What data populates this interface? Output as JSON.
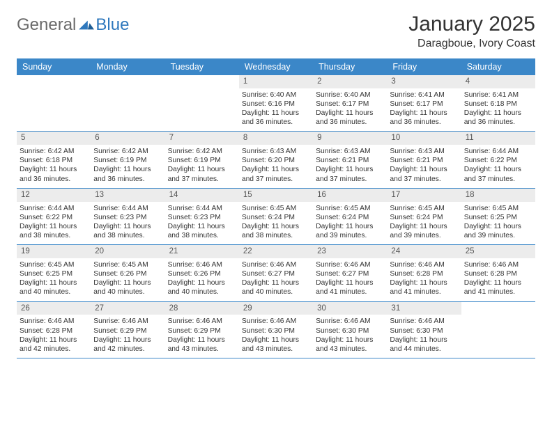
{
  "logo": {
    "general": "General",
    "blue": "Blue"
  },
  "title": "January 2025",
  "location": "Daragboue, Ivory Coast",
  "colors": {
    "header_bg": "#3b87c8",
    "header_text": "#ffffff",
    "daynum_bg": "#ececec",
    "text": "#333333",
    "logo_gray": "#6a6a6a",
    "logo_blue": "#2f78bd",
    "rule": "#3b87c8"
  },
  "day_names": [
    "Sunday",
    "Monday",
    "Tuesday",
    "Wednesday",
    "Thursday",
    "Friday",
    "Saturday"
  ],
  "weeks": [
    [
      {
        "empty": true
      },
      {
        "empty": true
      },
      {
        "empty": true
      },
      {
        "day": "1",
        "sunrise": "Sunrise: 6:40 AM",
        "sunset": "Sunset: 6:16 PM",
        "daylight": "Daylight: 11 hours and 36 minutes."
      },
      {
        "day": "2",
        "sunrise": "Sunrise: 6:40 AM",
        "sunset": "Sunset: 6:17 PM",
        "daylight": "Daylight: 11 hours and 36 minutes."
      },
      {
        "day": "3",
        "sunrise": "Sunrise: 6:41 AM",
        "sunset": "Sunset: 6:17 PM",
        "daylight": "Daylight: 11 hours and 36 minutes."
      },
      {
        "day": "4",
        "sunrise": "Sunrise: 6:41 AM",
        "sunset": "Sunset: 6:18 PM",
        "daylight": "Daylight: 11 hours and 36 minutes."
      }
    ],
    [
      {
        "day": "5",
        "sunrise": "Sunrise: 6:42 AM",
        "sunset": "Sunset: 6:18 PM",
        "daylight": "Daylight: 11 hours and 36 minutes."
      },
      {
        "day": "6",
        "sunrise": "Sunrise: 6:42 AM",
        "sunset": "Sunset: 6:19 PM",
        "daylight": "Daylight: 11 hours and 36 minutes."
      },
      {
        "day": "7",
        "sunrise": "Sunrise: 6:42 AM",
        "sunset": "Sunset: 6:19 PM",
        "daylight": "Daylight: 11 hours and 37 minutes."
      },
      {
        "day": "8",
        "sunrise": "Sunrise: 6:43 AM",
        "sunset": "Sunset: 6:20 PM",
        "daylight": "Daylight: 11 hours and 37 minutes."
      },
      {
        "day": "9",
        "sunrise": "Sunrise: 6:43 AM",
        "sunset": "Sunset: 6:21 PM",
        "daylight": "Daylight: 11 hours and 37 minutes."
      },
      {
        "day": "10",
        "sunrise": "Sunrise: 6:43 AM",
        "sunset": "Sunset: 6:21 PM",
        "daylight": "Daylight: 11 hours and 37 minutes."
      },
      {
        "day": "11",
        "sunrise": "Sunrise: 6:44 AM",
        "sunset": "Sunset: 6:22 PM",
        "daylight": "Daylight: 11 hours and 37 minutes."
      }
    ],
    [
      {
        "day": "12",
        "sunrise": "Sunrise: 6:44 AM",
        "sunset": "Sunset: 6:22 PM",
        "daylight": "Daylight: 11 hours and 38 minutes."
      },
      {
        "day": "13",
        "sunrise": "Sunrise: 6:44 AM",
        "sunset": "Sunset: 6:23 PM",
        "daylight": "Daylight: 11 hours and 38 minutes."
      },
      {
        "day": "14",
        "sunrise": "Sunrise: 6:44 AM",
        "sunset": "Sunset: 6:23 PM",
        "daylight": "Daylight: 11 hours and 38 minutes."
      },
      {
        "day": "15",
        "sunrise": "Sunrise: 6:45 AM",
        "sunset": "Sunset: 6:24 PM",
        "daylight": "Daylight: 11 hours and 38 minutes."
      },
      {
        "day": "16",
        "sunrise": "Sunrise: 6:45 AM",
        "sunset": "Sunset: 6:24 PM",
        "daylight": "Daylight: 11 hours and 39 minutes."
      },
      {
        "day": "17",
        "sunrise": "Sunrise: 6:45 AM",
        "sunset": "Sunset: 6:24 PM",
        "daylight": "Daylight: 11 hours and 39 minutes."
      },
      {
        "day": "18",
        "sunrise": "Sunrise: 6:45 AM",
        "sunset": "Sunset: 6:25 PM",
        "daylight": "Daylight: 11 hours and 39 minutes."
      }
    ],
    [
      {
        "day": "19",
        "sunrise": "Sunrise: 6:45 AM",
        "sunset": "Sunset: 6:25 PM",
        "daylight": "Daylight: 11 hours and 40 minutes."
      },
      {
        "day": "20",
        "sunrise": "Sunrise: 6:45 AM",
        "sunset": "Sunset: 6:26 PM",
        "daylight": "Daylight: 11 hours and 40 minutes."
      },
      {
        "day": "21",
        "sunrise": "Sunrise: 6:46 AM",
        "sunset": "Sunset: 6:26 PM",
        "daylight": "Daylight: 11 hours and 40 minutes."
      },
      {
        "day": "22",
        "sunrise": "Sunrise: 6:46 AM",
        "sunset": "Sunset: 6:27 PM",
        "daylight": "Daylight: 11 hours and 40 minutes."
      },
      {
        "day": "23",
        "sunrise": "Sunrise: 6:46 AM",
        "sunset": "Sunset: 6:27 PM",
        "daylight": "Daylight: 11 hours and 41 minutes."
      },
      {
        "day": "24",
        "sunrise": "Sunrise: 6:46 AM",
        "sunset": "Sunset: 6:28 PM",
        "daylight": "Daylight: 11 hours and 41 minutes."
      },
      {
        "day": "25",
        "sunrise": "Sunrise: 6:46 AM",
        "sunset": "Sunset: 6:28 PM",
        "daylight": "Daylight: 11 hours and 41 minutes."
      }
    ],
    [
      {
        "day": "26",
        "sunrise": "Sunrise: 6:46 AM",
        "sunset": "Sunset: 6:28 PM",
        "daylight": "Daylight: 11 hours and 42 minutes."
      },
      {
        "day": "27",
        "sunrise": "Sunrise: 6:46 AM",
        "sunset": "Sunset: 6:29 PM",
        "daylight": "Daylight: 11 hours and 42 minutes."
      },
      {
        "day": "28",
        "sunrise": "Sunrise: 6:46 AM",
        "sunset": "Sunset: 6:29 PM",
        "daylight": "Daylight: 11 hours and 43 minutes."
      },
      {
        "day": "29",
        "sunrise": "Sunrise: 6:46 AM",
        "sunset": "Sunset: 6:30 PM",
        "daylight": "Daylight: 11 hours and 43 minutes."
      },
      {
        "day": "30",
        "sunrise": "Sunrise: 6:46 AM",
        "sunset": "Sunset: 6:30 PM",
        "daylight": "Daylight: 11 hours and 43 minutes."
      },
      {
        "day": "31",
        "sunrise": "Sunrise: 6:46 AM",
        "sunset": "Sunset: 6:30 PM",
        "daylight": "Daylight: 11 hours and 44 minutes."
      },
      {
        "empty": true
      }
    ]
  ]
}
